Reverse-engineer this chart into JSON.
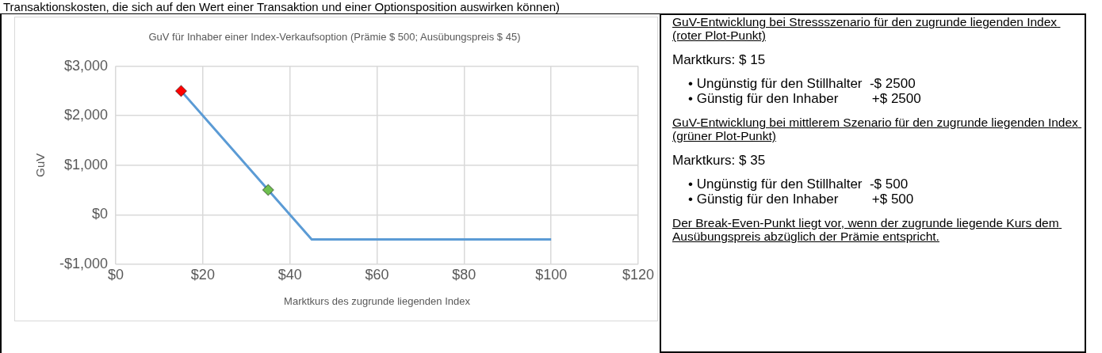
{
  "chart_data": {
    "type": "line",
    "title": "GuV für Inhaber einer Index-Verkaufsoption (Prämie $ 500; Ausübungspreis $ 45)",
    "xlabel": "Marktkurs des zugrunde liegenden Index",
    "ylabel": "GuV",
    "xlim": [
      0,
      120
    ],
    "xticks": [
      {
        "value": 0,
        "label": "$0"
      },
      {
        "value": 20,
        "label": "$20"
      },
      {
        "value": 40,
        "label": "$40"
      },
      {
        "value": 60,
        "label": "$60"
      },
      {
        "value": 80,
        "label": "$80"
      },
      {
        "value": 100,
        "label": "$100"
      },
      {
        "value": 120,
        "label": "$120"
      }
    ],
    "ylim": [
      -1000,
      3000
    ],
    "yticks": [
      {
        "value": -1000,
        "label": "-$1,000"
      },
      {
        "value": 0,
        "label": "$0"
      },
      {
        "value": 1000,
        "label": "$1,000"
      },
      {
        "value": 2000,
        "label": "$2,000"
      },
      {
        "value": 3000,
        "label": "$3,000"
      }
    ],
    "grid": true,
    "legend": false,
    "series": [
      {
        "color": "#5b9bd5",
        "x": [
          15,
          45,
          100
        ],
        "values": [
          2500,
          -500,
          -500
        ],
        "marker": "none",
        "line_style": "solid"
      },
      {
        "type": "scatter",
        "color": "#ff0000",
        "x": [
          15
        ],
        "values": [
          2500
        ],
        "marker": "diamond"
      },
      {
        "type": "scatter",
        "color": "#70c050",
        "x": [
          35
        ],
        "values": [
          500
        ],
        "marker": "diamond"
      }
    ],
    "annotations": [
      "Transaktionskosten, die sich auf den Wert einer Transaktion und einer Optionsposition auswirken können)",
      "GuV-Entwicklung bei Stressszenario für den zugrunde liegenden Index (roter Plot-Punkt)",
      "Marktkurs: $ 15",
      "• Ungünstig für den Stillhalter  -$ 2500\n• Günstig für den Inhaber         +$ 2500",
      "GuV-Entwicklung bei mittlerem Szenario für den zugrunde liegenden Index (grüner Plot-Punkt)",
      "Marktkurs: $ 35",
      "• Ungünstig für den Stillhalter  -$ 500\n• Günstig für den Inhaber         +$ 500",
      "Der Break-Even-Punkt liegt vor, wenn der zugrunde liegende Kurs dem Ausübungspreis abzüglich der Prämie entspricht."
    ]
  }
}
